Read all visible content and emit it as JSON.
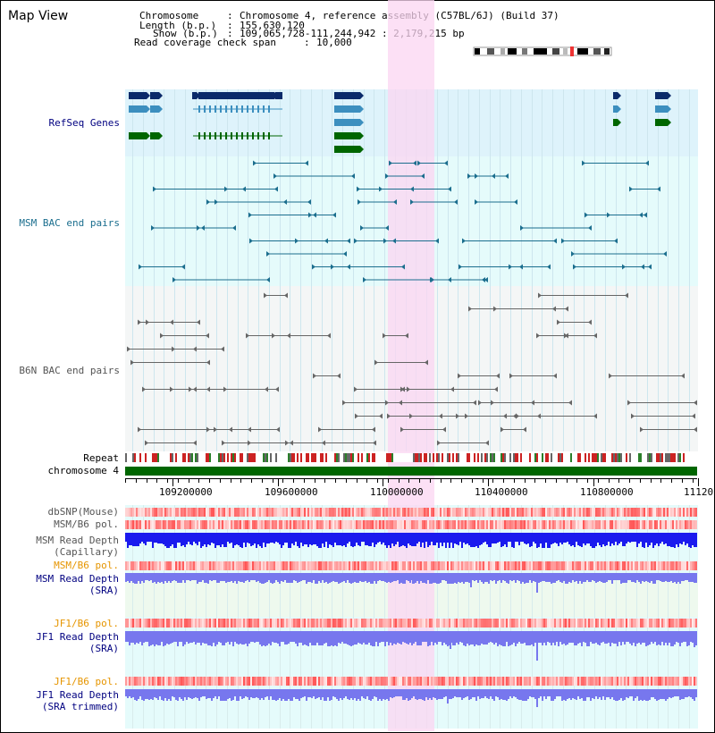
{
  "window": {
    "title": "Map View"
  },
  "info": {
    "chromosome_key": "Chromosome",
    "chromosome_value": "Chromosome 4, reference assembly (C57BL/6J) (Build 37)",
    "length_key": "Length (b.p.)",
    "length_value": "155,630,120",
    "show_key": "Show (b.p.)",
    "show_value": "109,065,728-111,244,942 : 2,179,215 bp",
    "coverage_key": "Read coverage check span",
    "coverage_value": "10,000"
  },
  "tracks": {
    "refseq": "RefSeq Genes",
    "msm_bac": "MSM BAC end pairs",
    "b6n_bac": "B6N BAC end pairs",
    "repeat": "Repeat",
    "chromosome": "chromosome 4",
    "dbsnp": "dbSNP(Mouse)",
    "msm_b6_pol_1": "MSM/B6 pol.",
    "msm_depth_cap_1": "MSM Read Depth",
    "msm_depth_cap_2": "(Capillary)",
    "msm_b6_pol_2": "MSM/B6 pol.",
    "msm_depth_sra_1": "MSM Read Depth",
    "msm_depth_sra_2": "(SRA)",
    "jf1_pol_1": "JF1/B6 pol.",
    "jf1_depth_sra_1": "JF1 Read Depth",
    "jf1_depth_sra_2": "(SRA)",
    "jf1_pol_2": "JF1/B6 pol.",
    "jf1_depth_trim_1": "JF1 Read Depth",
    "jf1_depth_trim_2": "(SRA trimmed)"
  },
  "ruler": {
    "ticks": [
      "109200000",
      "109600000",
      "110000000",
      "110400000",
      "110800000",
      "11120"
    ]
  },
  "colors": {
    "refseq_bg": "#def3fb",
    "msm_bg": "#e5fbfb",
    "b6n_bg": "#f4f6f6",
    "highlight": "#fbd5f1",
    "gene_dark": "#0a2a6a",
    "gene_mid": "#3c8fbf",
    "gene_green": "#006600",
    "bac_msm": "#1b6e8e",
    "bac_b6n": "#666666",
    "label_blue": "#000080",
    "label_teal": "#1b6e8e",
    "label_orange": "#e69500",
    "depth_blue": "#1a1aee",
    "depth_light": "#7777ee"
  }
}
